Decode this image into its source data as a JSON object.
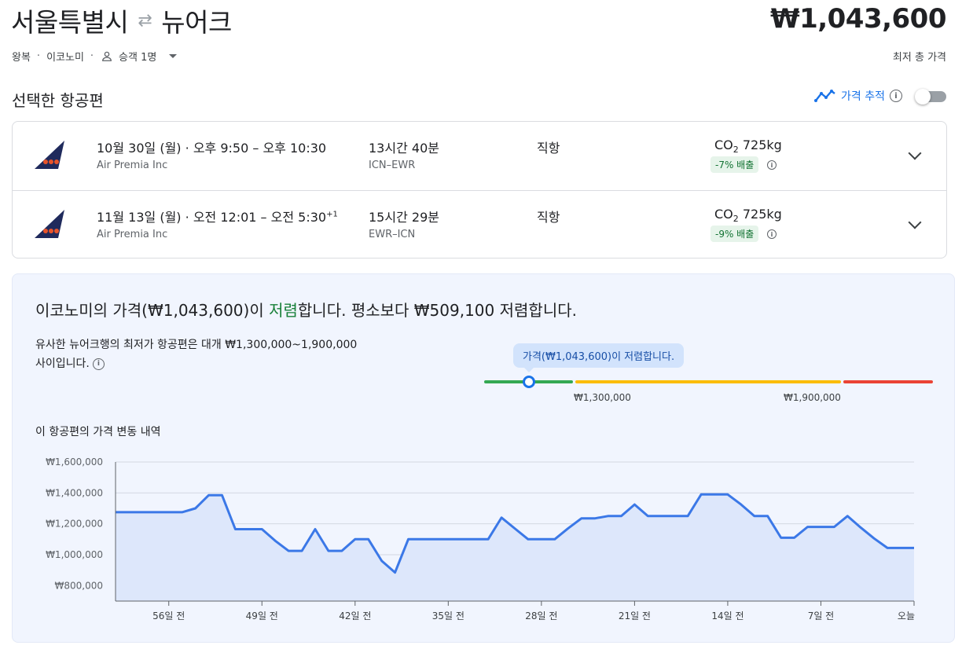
{
  "header": {
    "origin": "서울특별시",
    "destination": "뉴어크",
    "swap_icon": "swap-arrows-icon",
    "total_price": "₩1,043,600",
    "total_label": "최저 총 가격",
    "trip_type": "왕복",
    "cabin": "이코노미",
    "sep": "·",
    "passengers": "승객 1명"
  },
  "selected": {
    "title": "선택한 항공편",
    "track_label": "가격 추적"
  },
  "flights": [
    {
      "date": "10월 30일 (월)",
      "dot": "·",
      "times": "오후 9:50 – 오후 10:30",
      "plus_day": "",
      "airline": "Air Premia Inc",
      "duration": "13시간 40분",
      "route": "ICN–EWR",
      "stops": "직항",
      "co2_prefix": "CO",
      "co2_sub": "2",
      "co2_value": " 725kg",
      "emission": "-7% 배출"
    },
    {
      "date": "11월 13일 (월)",
      "dot": "·",
      "times": "오전 12:01 – 오전 5:30",
      "plus_day": "+1",
      "airline": "Air Premia Inc",
      "duration": "15시간 29분",
      "route": "EWR–ICN",
      "stops": "직항",
      "co2_prefix": "CO",
      "co2_sub": "2",
      "co2_value": " 725kg",
      "emission": "-9% 배출"
    }
  ],
  "insight": {
    "head_pre": "이코노미의 가격(₩1,043,600)이 ",
    "head_hl": "저렴",
    "head_post": "합니다. 평소보다 ₩509,100 저렴합니다.",
    "desc_line1": "유사한 뉴어크행의 최저가 항공편은 대개 ₩1,300,000~1,900,000",
    "desc_line2": "사이입니다.",
    "bubble": "가격(₩1,043,600)이 저렴합니다.",
    "band_low": "₩1,300,000",
    "band_high": "₩1,900,000",
    "current_price": 1043600
  },
  "history_title": "이 항공편의 가격 변동 내역",
  "chart_data": {
    "type": "area",
    "ylim": [
      700000,
      1600000
    ],
    "yticks": [
      {
        "v": 800000,
        "label": "₩800,000"
      },
      {
        "v": 1000000,
        "label": "₩1,000,000"
      },
      {
        "v": 1200000,
        "label": "₩1,200,000"
      },
      {
        "v": 1400000,
        "label": "₩1,400,000"
      },
      {
        "v": 1600000,
        "label": "₩1,600,000"
      }
    ],
    "xlim": [
      -60,
      0
    ],
    "xticks": [
      {
        "v": -56,
        "label": "56일 전"
      },
      {
        "v": -49,
        "label": "49일 전"
      },
      {
        "v": -42,
        "label": "42일 전"
      },
      {
        "v": -35,
        "label": "35일 전"
      },
      {
        "v": -28,
        "label": "28일 전"
      },
      {
        "v": -21,
        "label": "21일 전"
      },
      {
        "v": -14,
        "label": "14일 전"
      },
      {
        "v": -7,
        "label": "7일 전"
      },
      {
        "v": 0,
        "label": "오늘"
      }
    ],
    "series": [
      {
        "color": "#3b78e7",
        "x": [
          -60,
          -55,
          -54,
          -53,
          -52,
          -51,
          -50,
          -49,
          -48,
          -47,
          -46,
          -45,
          -44,
          -43,
          -42,
          -41,
          -40,
          -39,
          -38,
          -37,
          -36,
          -35,
          -34,
          -33,
          -32,
          -31,
          -30,
          -29,
          -28,
          -27,
          -26,
          -25,
          -24,
          -23,
          -22,
          -21,
          -20,
          -19,
          -18,
          -17,
          -16,
          -15,
          -14,
          -13,
          -12,
          -11,
          -10,
          -9,
          -8,
          -7,
          -6,
          -5,
          -4,
          -3,
          -2,
          -1,
          0
        ],
        "y": [
          1275000,
          1275000,
          1300000,
          1385000,
          1385000,
          1165000,
          1165000,
          1165000,
          1090000,
          1025000,
          1025000,
          1165000,
          1025000,
          1025000,
          1100000,
          1100000,
          960000,
          885000,
          1100000,
          1100000,
          1100000,
          1100000,
          1100000,
          1100000,
          1100000,
          1240000,
          1170000,
          1100000,
          1100000,
          1100000,
          1170000,
          1235000,
          1235000,
          1250000,
          1250000,
          1325000,
          1250000,
          1250000,
          1250000,
          1250000,
          1390000,
          1390000,
          1390000,
          1325000,
          1250000,
          1250000,
          1110000,
          1110000,
          1180000,
          1180000,
          1180000,
          1250000,
          1175000,
          1105000,
          1043600,
          1043600,
          1043600
        ]
      }
    ]
  }
}
